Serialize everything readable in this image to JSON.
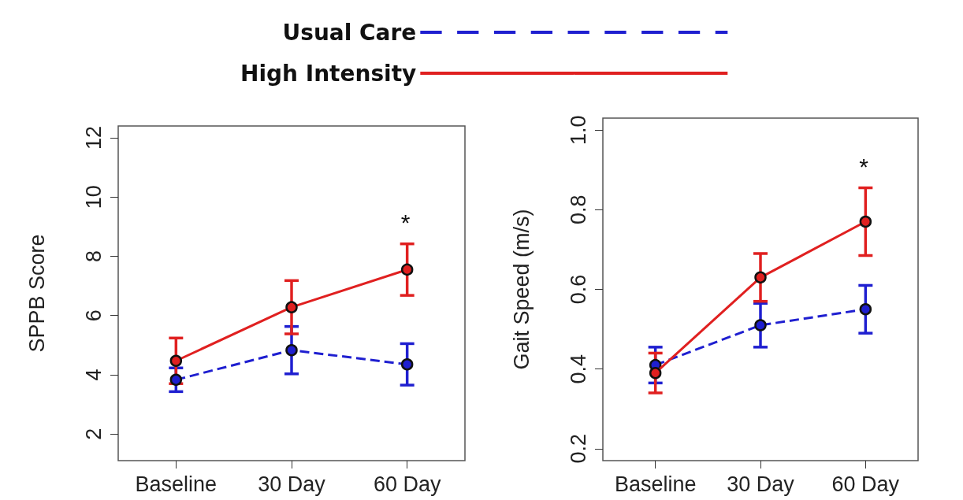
{
  "chart_data": [
    {
      "type": "line",
      "categories": [
        "Baseline",
        "30 Day",
        "60 Day"
      ],
      "ylabel": "SPPB Score",
      "ylim": [
        1.1,
        12.4
      ],
      "yticks": [
        2,
        4,
        6,
        8,
        10,
        12
      ],
      "grid": false,
      "legend": "top",
      "marker": "circle",
      "annotations": [
        "*"
      ],
      "series": [
        {
          "name": "Usual Care",
          "color": "#1f1fd0",
          "line_style": "dashed",
          "values": [
            3.83,
            4.83,
            4.35
          ],
          "errors": [
            0.4,
            0.8,
            0.7
          ]
        },
        {
          "name": "High Intensity",
          "color": "#e02020",
          "line_style": "solid",
          "values": [
            4.47,
            6.28,
            7.55
          ],
          "errors": [
            0.77,
            0.9,
            0.87
          ]
        }
      ]
    },
    {
      "type": "line",
      "categories": [
        "Baseline",
        "30 Day",
        "60 Day"
      ],
      "ylabel": "Gait Speed (m/s)",
      "ylim": [
        0.17,
        1.03
      ],
      "yticks": [
        0.2,
        0.4,
        0.6,
        0.8,
        {
          "value": 1,
          "label": "1.0"
        }
      ],
      "grid": false,
      "marker": "circle",
      "annotations": [
        "*"
      ],
      "series": [
        {
          "color": "#1f1fd0",
          "line_style": "dashed",
          "values": [
            0.41,
            0.51,
            0.55
          ],
          "errors": [
            0.045,
            0.055,
            0.06
          ]
        },
        {
          "color": "#e02020",
          "line_style": "solid",
          "values": [
            0.39,
            0.63,
            0.77
          ],
          "errors": [
            0.05,
            0.06,
            0.085
          ]
        }
      ]
    }
  ]
}
